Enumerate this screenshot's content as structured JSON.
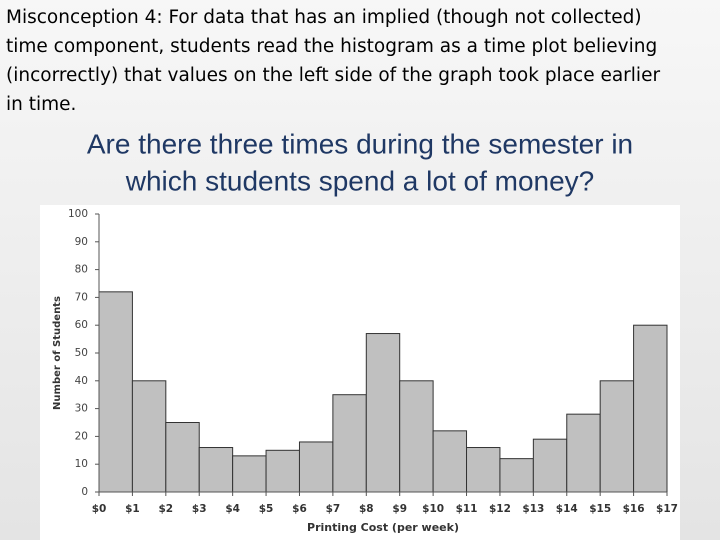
{
  "slide": {
    "heading_lines": [
      "Misconception 4: For data that has an implied (though not collected)",
      "time component, students read the histogram as a time plot believing",
      "(incorrectly) that values on the left side of the graph took place earlier",
      "in time."
    ],
    "question_lines": [
      "Are there three times during the semester in",
      "which students spend a lot of money?"
    ]
  },
  "chart_data": {
    "type": "histogram",
    "bins": [
      0,
      1,
      2,
      3,
      4,
      5,
      6,
      7,
      8,
      9,
      10,
      11,
      12,
      13,
      14,
      15,
      16,
      17
    ],
    "values": [
      72,
      40,
      25,
      16,
      13,
      15,
      18,
      35,
      57,
      40,
      22,
      16,
      12,
      19,
      28,
      40,
      60
    ],
    "color": "#c0c0c0",
    "xlabel": "Printing Cost (per week)",
    "ylabel": "Number of Students",
    "xlim": [
      0,
      17
    ],
    "xticks": [
      {
        "value": 0,
        "label": "$0"
      },
      {
        "value": 1,
        "label": "$1"
      },
      {
        "value": 2,
        "label": "$2"
      },
      {
        "value": 3,
        "label": "$3"
      },
      {
        "value": 4,
        "label": "$4"
      },
      {
        "value": 5,
        "label": "$5"
      },
      {
        "value": 6,
        "label": "$6"
      },
      {
        "value": 7,
        "label": "$7"
      },
      {
        "value": 8,
        "label": "$8"
      },
      {
        "value": 9,
        "label": "$9"
      },
      {
        "value": 10,
        "label": "$10"
      },
      {
        "value": 11,
        "label": "$11"
      },
      {
        "value": 12,
        "label": "$12"
      },
      {
        "value": 13,
        "label": "$13"
      },
      {
        "value": 14,
        "label": "$14"
      },
      {
        "value": 15,
        "label": "$15"
      },
      {
        "value": 16,
        "label": "$16"
      },
      {
        "value": 17,
        "label": "$17"
      }
    ],
    "ylim": [
      0,
      100
    ],
    "yticks": [
      0,
      10,
      20,
      30,
      40,
      50,
      60,
      70,
      80,
      90,
      100
    ]
  }
}
